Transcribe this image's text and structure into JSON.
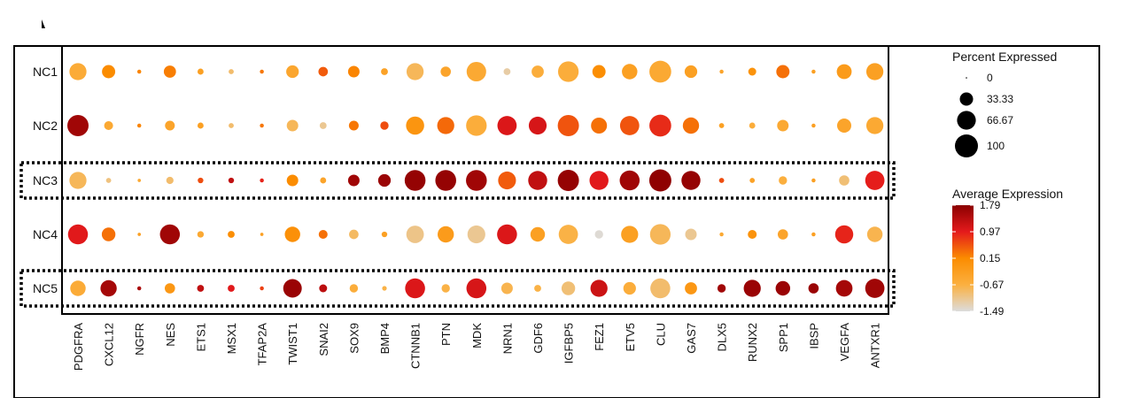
{
  "chart_data": {
    "type": "dotplot",
    "genes": [
      "PDGFRA",
      "CXCL12",
      "NGFR",
      "NES",
      "ETS1",
      "MSX1",
      "TFAP2A",
      "TWIST1",
      "SNAI2",
      "SOX9",
      "BMP4",
      "CTNNB1",
      "PTN",
      "MDK",
      "NRN1",
      "GDF6",
      "IGFBP5",
      "FEZ1",
      "ETV5",
      "CLU",
      "GAS7",
      "DLX5",
      "RUNX2",
      "SPP1",
      "IBSP",
      "VEGFA",
      "ANTXR1"
    ],
    "clusters": [
      "NC1",
      "NC2",
      "NC3",
      "NC4",
      "NC5"
    ],
    "highlighted_clusters": [
      "NC3",
      "NC5"
    ],
    "series": [
      {
        "name": "NC1",
        "pct": [
          55,
          33,
          3,
          28,
          7,
          5,
          3,
          30,
          17,
          25,
          9,
          55,
          20,
          72,
          9,
          28,
          80,
          33,
          45,
          90,
          30,
          3,
          12,
          33,
          3,
          42,
          55
        ],
        "avg": [
          -0.55,
          0.15,
          0.2,
          0.25,
          -0.3,
          -0.9,
          0.3,
          -0.45,
          0.5,
          0.2,
          -0.35,
          -0.8,
          -0.4,
          -0.5,
          -1.2,
          -0.6,
          -0.6,
          0.1,
          -0.3,
          -0.5,
          -0.3,
          -0.4,
          0.0,
          0.35,
          -0.3,
          -0.2,
          -0.3
        ]
      },
      {
        "name": "NC2",
        "pct": [
          85,
          15,
          3,
          18,
          7,
          5,
          3,
          25,
          9,
          18,
          13,
          62,
          55,
          80,
          70,
          60,
          85,
          48,
          70,
          90,
          50,
          5,
          7,
          25,
          3,
          38,
          55
        ],
        "avg": [
          1.6,
          -0.5,
          0.2,
          -0.4,
          -0.3,
          -0.9,
          0.3,
          -0.8,
          -1.1,
          0.3,
          0.6,
          -0.05,
          0.4,
          -0.6,
          1.05,
          1.1,
          0.55,
          0.35,
          0.55,
          0.85,
          0.35,
          -0.3,
          -0.6,
          -0.5,
          -0.3,
          -0.4,
          -0.5
        ]
      },
      {
        "name": "NC3",
        "pct": [
          55,
          5,
          2,
          10,
          6,
          6,
          3,
          25,
          7,
          25,
          30,
          82,
          82,
          82,
          60,
          68,
          85,
          68,
          75,
          92,
          68,
          5,
          5,
          13,
          3,
          20,
          70
        ],
        "avg": [
          -0.8,
          -1.0,
          -0.5,
          -0.9,
          0.6,
          1.3,
          0.9,
          0.15,
          -0.4,
          1.6,
          1.65,
          1.7,
          1.7,
          1.6,
          0.5,
          1.3,
          1.7,
          1.0,
          1.6,
          1.75,
          1.7,
          0.6,
          -0.35,
          -0.65,
          -0.3,
          -0.95,
          0.95
        ]
      },
      {
        "name": "NC4",
        "pct": [
          75,
          35,
          2,
          75,
          8,
          9,
          2,
          45,
          15,
          17,
          6,
          58,
          50,
          60,
          75,
          40,
          70,
          13,
          55,
          80,
          25,
          3,
          15,
          20,
          3,
          62,
          45
        ],
        "avg": [
          1.0,
          0.35,
          -0.3,
          1.6,
          -0.5,
          0.1,
          -0.3,
          0.05,
          0.35,
          -0.85,
          -0.3,
          -1.05,
          -0.2,
          -1.1,
          1.05,
          -0.3,
          -0.7,
          -1.45,
          -0.3,
          -0.8,
          -1.1,
          -0.5,
          0.0,
          -0.4,
          -0.3,
          0.9,
          -0.75
        ]
      },
      {
        "name": "NC5",
        "pct": [
          45,
          50,
          3,
          20,
          9,
          9,
          3,
          65,
          12,
          13,
          4,
          75,
          13,
          75,
          25,
          9,
          35,
          55,
          30,
          75,
          28,
          13,
          55,
          40,
          20,
          52,
          70
        ],
        "avg": [
          -0.55,
          1.55,
          1.5,
          -0.1,
          1.3,
          1.0,
          0.7,
          1.65,
          1.35,
          -0.6,
          -0.7,
          1.05,
          -0.7,
          1.1,
          -0.75,
          -0.7,
          -0.95,
          1.2,
          -0.6,
          -0.9,
          -0.1,
          1.6,
          1.65,
          1.65,
          1.65,
          1.55,
          1.6
        ]
      }
    ],
    "size_legend": {
      "title": "Percent Expressed",
      "values": [
        0,
        33.33,
        66.67,
        100
      ],
      "labels": [
        "0",
        "33.33",
        "66.67",
        "100"
      ]
    },
    "color_legend": {
      "title": "Average Expression",
      "ticks": [
        1.79,
        0.97,
        0.15,
        -0.67,
        -1.49
      ],
      "labels": [
        "1.79",
        "0.97",
        "0.15",
        "-0.67",
        "-1.49"
      ],
      "min": -1.49,
      "max": 1.79
    },
    "colors": {
      "low": "#dcdcdc",
      "mid_low": "#fbb040",
      "mid": "#fb8c00",
      "mid_high": "#e41a1c",
      "high": "#8b0000"
    },
    "grid": false,
    "legend_position": "right"
  }
}
